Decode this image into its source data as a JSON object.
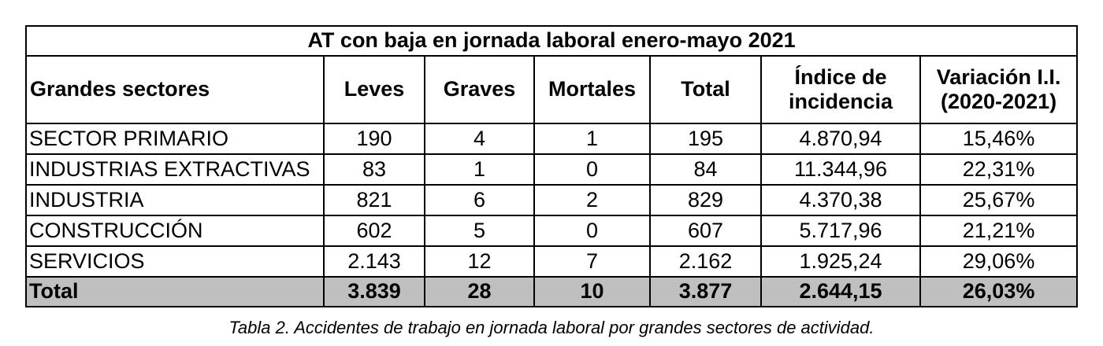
{
  "table": {
    "title": "AT con baja en jornada laboral enero-mayo 2021",
    "headers": [
      {
        "line1": "Grandes sectores",
        "line2": ""
      },
      {
        "line1": "Leves",
        "line2": ""
      },
      {
        "line1": "Graves",
        "line2": ""
      },
      {
        "line1": "Mortales",
        "line2": ""
      },
      {
        "line1": "Total",
        "line2": ""
      },
      {
        "line1": "Índice de",
        "line2": "incidencia"
      },
      {
        "line1": "Variación I.I.",
        "line2": "(2020-2021)"
      }
    ],
    "rows": [
      [
        "SECTOR PRIMARIO",
        "190",
        "4",
        "1",
        "195",
        "4.870,94",
        "15,46%"
      ],
      [
        "INDUSTRIAS EXTRACTIVAS",
        "83",
        "1",
        "0",
        "84",
        "11.344,96",
        "22,31%"
      ],
      [
        "INDUSTRIA",
        "821",
        "6",
        "2",
        "829",
        "4.370,38",
        "25,67%"
      ],
      [
        "CONSTRUCCIÓN",
        "602",
        "5",
        "0",
        "607",
        "5.717,96",
        "21,21%"
      ],
      [
        "SERVICIOS",
        "2.143",
        "12",
        "7",
        "2.162",
        "1.925,24",
        "29,06%"
      ]
    ],
    "total": [
      "Total",
      "3.839",
      "28",
      "10",
      "3.877",
      "2.644,15",
      "26,03%"
    ]
  },
  "caption": "Tabla 2. Accidentes de trabajo en jornada laboral por grandes sectores de actividad.",
  "colors": {
    "total_row_background": "#bfbfbf",
    "border": "#000000"
  }
}
